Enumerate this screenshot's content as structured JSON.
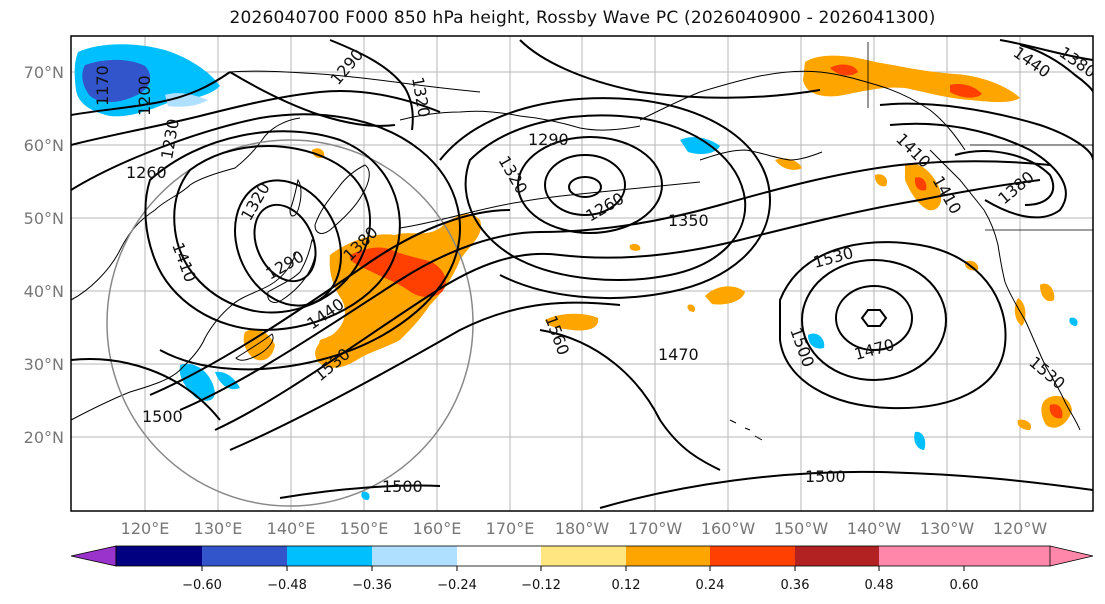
{
  "title": "2026040700 F000 850 hPa height, Rossby Wave PC (2026040900 - 2026041300)",
  "lat_labels": [
    "70°N",
    "60°N",
    "50°N",
    "40°N",
    "30°N",
    "20°N"
  ],
  "lon_labels": [
    "120°E",
    "130°E",
    "140°E",
    "150°E",
    "160°E",
    "170°E",
    "180°W",
    "170°W",
    "160°W",
    "150°W",
    "140°W",
    "130°W",
    "120°W"
  ],
  "contour_labels": [
    "1170",
    "1200",
    "1230",
    "1260",
    "1290",
    "1320",
    "1320",
    "1290",
    "1320",
    "1260",
    "1350",
    "1290",
    "1410",
    "1380",
    "1440",
    "1530",
    "1500",
    "1500",
    "1560",
    "1470",
    "1530",
    "1500",
    "1470",
    "1530",
    "1500",
    "1410",
    "1380",
    "1440",
    "1410",
    "1380"
  ],
  "colorbar": {
    "ticks": [
      "−0.60",
      "−0.48",
      "−0.36",
      "−0.24",
      "−0.12",
      "0.12",
      "0.24",
      "0.36",
      "0.48",
      "0.60"
    ],
    "colors": [
      "#9933cc",
      "#000080",
      "#3355cc",
      "#00bfff",
      "#b0e0ff",
      "#ffffff",
      "#ffe680",
      "#ffa500",
      "#ff4000",
      "#b22222",
      "#ff88aa"
    ]
  }
}
